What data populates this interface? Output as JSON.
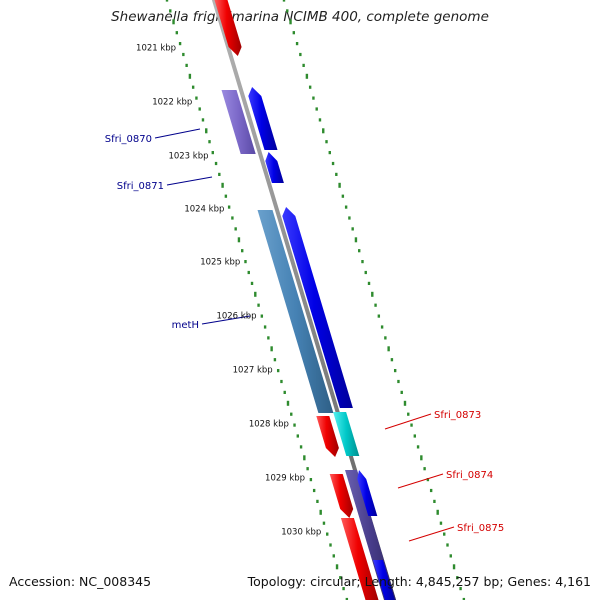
{
  "title": "Shewanella frigidimarina NCIMB 400, complete genome",
  "footer": {
    "accession": "Accession: NC_008345",
    "topology": "Topology: circular; Length: 4,845,257 bp; Genes: 4,161"
  },
  "ruler": {
    "labels": [
      "1021 kbp",
      "1022 kbp",
      "1023 kbp",
      "1024 kbp",
      "1025 kbp",
      "1026 kbp",
      "1027 kbp",
      "1028 kbp",
      "1029 kbp",
      "1030 kbp"
    ]
  },
  "genes": [
    {
      "name": "Sfri_0870",
      "color": "#00008b"
    },
    {
      "name": "Sfri_0871",
      "color": "#00008b"
    },
    {
      "name": "metH",
      "color": "#00008b"
    },
    {
      "name": "Sfri_0873",
      "color": "#d40000"
    },
    {
      "name": "Sfri_0874",
      "color": "#d40000"
    },
    {
      "name": "Sfri_0875",
      "color": "#d40000"
    }
  ],
  "colors": {
    "backbone": "#8a8a8a",
    "forward_strand": "#0000ee",
    "reverse_strand": "#ee0000",
    "cds_purple": "#7b68c8",
    "cds_steelblue": "#4682b4",
    "cds_cyan": "#00c8c8",
    "cds_slate": "#483d8b",
    "ticks": "#2e8b2e"
  }
}
